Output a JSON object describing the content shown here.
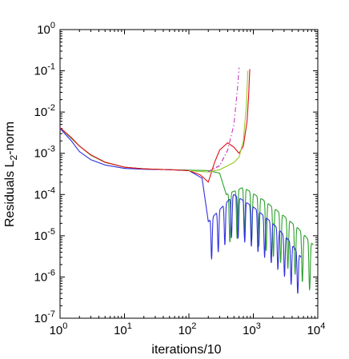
{
  "chart_data": {
    "type": "line",
    "title": "",
    "xlabel": "iterations/10",
    "ylabel": {
      "main": "Residuals L",
      "sub": "2",
      "tail": "-norm"
    },
    "xscale": "log",
    "yscale": "log",
    "xlim": [
      1,
      10000
    ],
    "ylim": [
      1e-07,
      1
    ],
    "x_ticks": [
      {
        "value": 1,
        "base": "10",
        "exp": "0"
      },
      {
        "value": 10,
        "base": "10",
        "exp": "1"
      },
      {
        "value": 100,
        "base": "10",
        "exp": "2"
      },
      {
        "value": 1000,
        "base": "10",
        "exp": "3"
      },
      {
        "value": 10000,
        "base": "10",
        "exp": "4"
      }
    ],
    "y_ticks": [
      {
        "value": 1,
        "base": "10",
        "exp": "0"
      },
      {
        "value": 0.1,
        "base": "10",
        "exp": "-1"
      },
      {
        "value": 0.01,
        "base": "10",
        "exp": "-2"
      },
      {
        "value": 0.001,
        "base": "10",
        "exp": "-3"
      },
      {
        "value": 0.0001,
        "base": "10",
        "exp": "-4"
      },
      {
        "value": 1e-05,
        "base": "10",
        "exp": "-5"
      },
      {
        "value": 1e-06,
        "base": "10",
        "exp": "-6"
      },
      {
        "value": 1e-07,
        "base": "10",
        "exp": "-7"
      }
    ],
    "grid": false,
    "legend": "none",
    "series": [
      {
        "color": "#2ca02c",
        "style": "solid",
        "oscillation": {
          "from": 380,
          "to": 8500,
          "cycles": 12,
          "depth": 0.12
        },
        "points": [
          [
            1,
            0.0042
          ],
          [
            1.5,
            0.0023
          ],
          [
            2,
            0.0015
          ],
          [
            3,
            0.0009
          ],
          [
            5,
            0.0006
          ],
          [
            10,
            0.00046
          ],
          [
            20,
            0.00042
          ],
          [
            50,
            0.0004
          ],
          [
            100,
            0.00039
          ],
          [
            200,
            0.00038
          ],
          [
            300,
            0.00033
          ],
          [
            380,
            0.0001
          ],
          [
            700,
            0.00015
          ],
          [
            1500,
            7e-05
          ],
          [
            3000,
            3e-05
          ],
          [
            5000,
            1.5e-05
          ],
          [
            8500,
            6e-06
          ]
        ]
      },
      {
        "color": "#3030e0",
        "style": "solid",
        "oscillation": {
          "from": 200,
          "to": 5500,
          "cycles": 14,
          "depth": 0.1
        },
        "points": [
          [
            1,
            0.004
          ],
          [
            1.5,
            0.002
          ],
          [
            2,
            0.0011
          ],
          [
            3,
            0.0007
          ],
          [
            5,
            0.00052
          ],
          [
            10,
            0.00043
          ],
          [
            20,
            0.00041
          ],
          [
            50,
            0.0004
          ],
          [
            100,
            0.00038
          ],
          [
            160,
            0.00025
          ],
          [
            200,
            2.2e-05
          ],
          [
            500,
            0.0001
          ],
          [
            1000,
            5e-05
          ],
          [
            2000,
            2e-05
          ],
          [
            3500,
            8e-06
          ],
          [
            5500,
            3e-06
          ]
        ]
      },
      {
        "color": "#e01010",
        "style": "solid",
        "dips": [
          {
            "x": 200,
            "y": 0.0002
          }
        ],
        "points": [
          [
            1,
            0.0042
          ],
          [
            1.5,
            0.0024
          ],
          [
            2,
            0.0015
          ],
          [
            3,
            0.00092
          ],
          [
            5,
            0.00061
          ],
          [
            10,
            0.00046
          ],
          [
            20,
            0.00042
          ],
          [
            50,
            0.0004
          ],
          [
            100,
            0.00038
          ],
          [
            150,
            0.0003
          ],
          [
            200,
            0.0002
          ],
          [
            250,
            0.0006
          ],
          [
            300,
            0.0012
          ],
          [
            400,
            0.0018
          ],
          [
            500,
            0.0014
          ],
          [
            600,
            0.001
          ],
          [
            700,
            0.0015
          ],
          [
            800,
            0.006
          ],
          [
            850,
            0.03
          ],
          [
            880,
            0.11
          ]
        ]
      },
      {
        "color": "#9acd32",
        "style": "solid",
        "points": [
          [
            100,
            0.00038
          ],
          [
            200,
            0.00035
          ],
          [
            300,
            0.0004
          ],
          [
            400,
            0.0005
          ],
          [
            500,
            0.0006
          ],
          [
            600,
            0.0008
          ],
          [
            700,
            0.002
          ],
          [
            780,
            0.015
          ],
          [
            820,
            0.1
          ]
        ]
      },
      {
        "color": "#c040c0",
        "style": "dashdot",
        "points": [
          [
            200,
            0.00036
          ],
          [
            300,
            0.0005
          ],
          [
            400,
            0.0012
          ],
          [
            500,
            0.005
          ],
          [
            570,
            0.04
          ],
          [
            600,
            0.12
          ]
        ]
      }
    ]
  }
}
